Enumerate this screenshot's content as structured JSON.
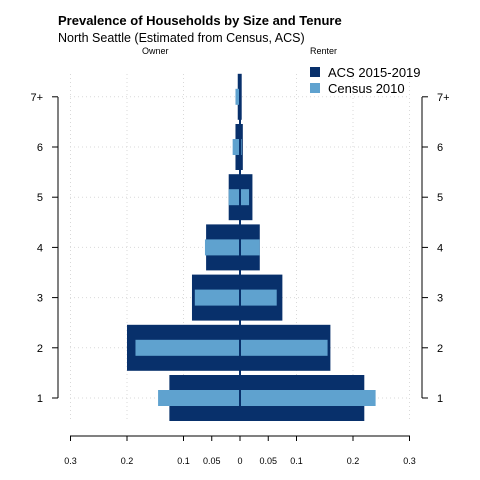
{
  "chart_data": {
    "type": "bar",
    "orientation": "horizontal-diverging",
    "title": "Prevalence of Households by Size and Tenure",
    "subtitle": "North Seattle (Estimated from Census, ACS)",
    "left_label": "Owner",
    "right_label": "Renter",
    "categories": [
      "1",
      "2",
      "3",
      "4",
      "5",
      "6",
      "7+"
    ],
    "x_tick_labels": [
      "0.3",
      "0.2",
      "0.1",
      "0.05",
      "0",
      "0.05",
      "0.1",
      "0.2",
      "0.3"
    ],
    "x_ticks": [
      -0.3,
      -0.2,
      -0.1,
      -0.05,
      0,
      0.05,
      0.1,
      0.2,
      0.3
    ],
    "xlim": [
      -0.3,
      0.3
    ],
    "grid": true,
    "legend_position": "top-right",
    "series": [
      {
        "name": "ACS 2015-2019",
        "color": "#08306b",
        "owner": [
          0.125,
          0.2,
          0.085,
          0.06,
          0.02,
          0.008,
          0.004
        ],
        "renter": [
          0.22,
          0.16,
          0.075,
          0.035,
          0.022,
          0.005,
          0.003
        ]
      },
      {
        "name": "Census 2010",
        "color": "#5fa2cf",
        "owner": [
          0.145,
          0.185,
          0.08,
          0.062,
          0.02,
          0.013,
          0.008
        ],
        "renter": [
          0.24,
          0.155,
          0.065,
          0.035,
          0.016,
          0.003,
          0.001
        ]
      }
    ]
  }
}
